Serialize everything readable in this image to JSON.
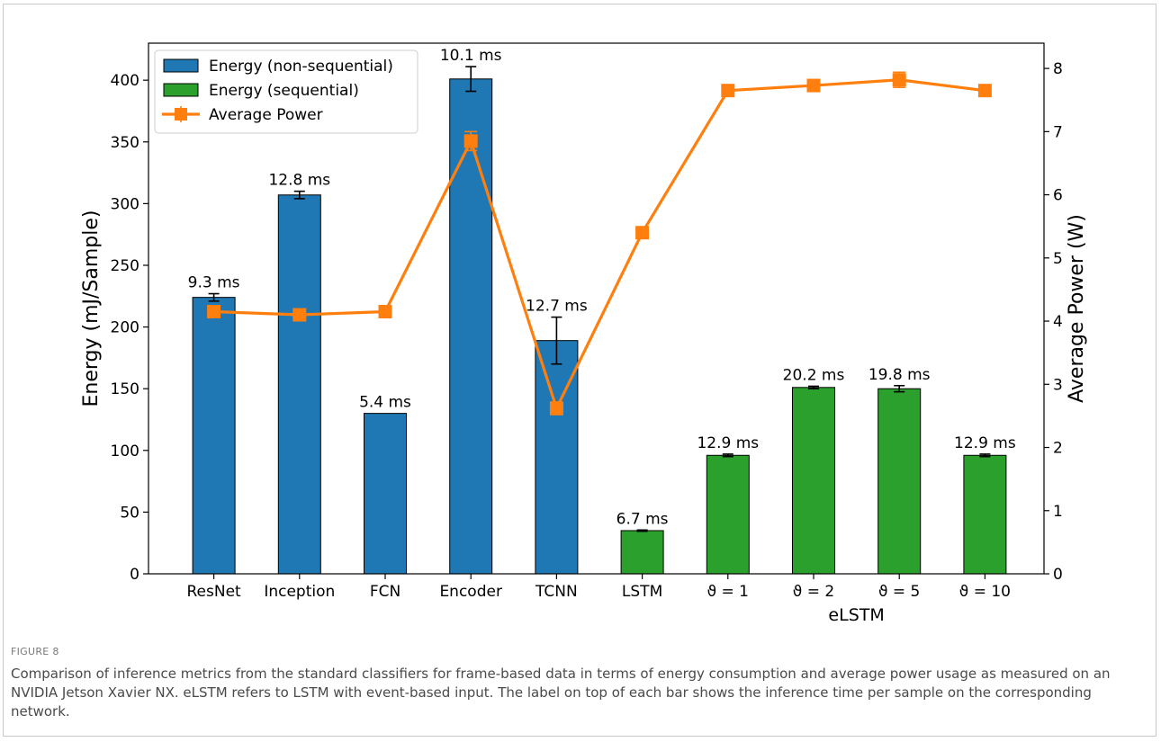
{
  "figure": {
    "label": "FIGURE 8",
    "caption": "Comparison of inference metrics from the standard classifiers for frame-based data in terms of energy consumption and average power usage as measured on an NVIDIA Jetson Xavier NX. eLSTM refers to LSTM with event-based input. The label on top of each bar shows the inference time per sample on the corresponding network."
  },
  "chart_data": {
    "type": "bar",
    "categories": [
      "ResNet",
      "Inception",
      "FCN",
      "Encoder",
      "TCNN",
      "LSTM",
      "ϑ = 1",
      "ϑ = 2",
      "ϑ = 5",
      "ϑ = 10"
    ],
    "group_label": "eLSTM",
    "ylabel": "Energy (mJ/Sample)",
    "y2label": "Average Power (W)",
    "ylim": [
      0,
      430
    ],
    "y2lim": [
      0,
      8.4
    ],
    "yticks": [
      0,
      50,
      100,
      150,
      200,
      250,
      300,
      350,
      400
    ],
    "y2ticks": [
      0,
      1,
      2,
      3,
      4,
      5,
      6,
      7,
      8
    ],
    "series": [
      {
        "name": "Energy (non-sequential)",
        "kind": "bar",
        "color": "#1f77b4",
        "values": [
          224,
          307,
          130,
          401,
          189,
          null,
          null,
          null,
          null,
          null
        ],
        "errors": [
          3,
          3,
          0,
          10,
          19,
          null,
          null,
          null,
          null,
          null
        ]
      },
      {
        "name": "Energy (sequential)",
        "kind": "bar",
        "color": "#2ca02c",
        "values": [
          null,
          null,
          null,
          null,
          null,
          35,
          96,
          151,
          150,
          96
        ],
        "errors": [
          null,
          null,
          null,
          null,
          null,
          0.5,
          1,
          1,
          2.5,
          1
        ]
      },
      {
        "name": "Average Power",
        "kind": "line",
        "axis": "right",
        "color": "#ff7f0e",
        "values": [
          4.15,
          4.1,
          4.15,
          6.85,
          2.62,
          5.4,
          7.65,
          7.73,
          7.82,
          7.65
        ],
        "errors": [
          0.05,
          0.03,
          0.03,
          0.15,
          0.1,
          0.03,
          0.03,
          0.03,
          0.12,
          0.03
        ]
      }
    ],
    "bar_labels": [
      "9.3 ms",
      "12.8 ms",
      "5.4 ms",
      "10.1 ms",
      "12.7 ms",
      "6.7 ms",
      "12.9 ms",
      "20.2 ms",
      "19.8 ms",
      "12.9 ms"
    ],
    "legend_position": "top-left"
  }
}
